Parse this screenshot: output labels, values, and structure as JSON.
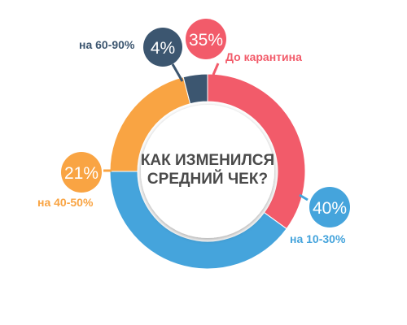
{
  "chart_data": {
    "type": "pie",
    "title_lines": [
      "КАК ИЗМЕНИЛСЯ",
      "СРЕДНИЙ ЧЕК?"
    ],
    "slices": [
      {
        "label": "До карантина",
        "value": 35,
        "value_label": "35%",
        "color": "#f25b6a"
      },
      {
        "label": "на 10-30%",
        "value": 40,
        "value_label": "40%",
        "color": "#45a4dc"
      },
      {
        "label": "на 40-50%",
        "value": 21,
        "value_label": "21%",
        "color": "#f9a443"
      },
      {
        "label": "на 60-90%",
        "value": 4,
        "value_label": "4%",
        "color": "#3c5670"
      }
    ]
  }
}
